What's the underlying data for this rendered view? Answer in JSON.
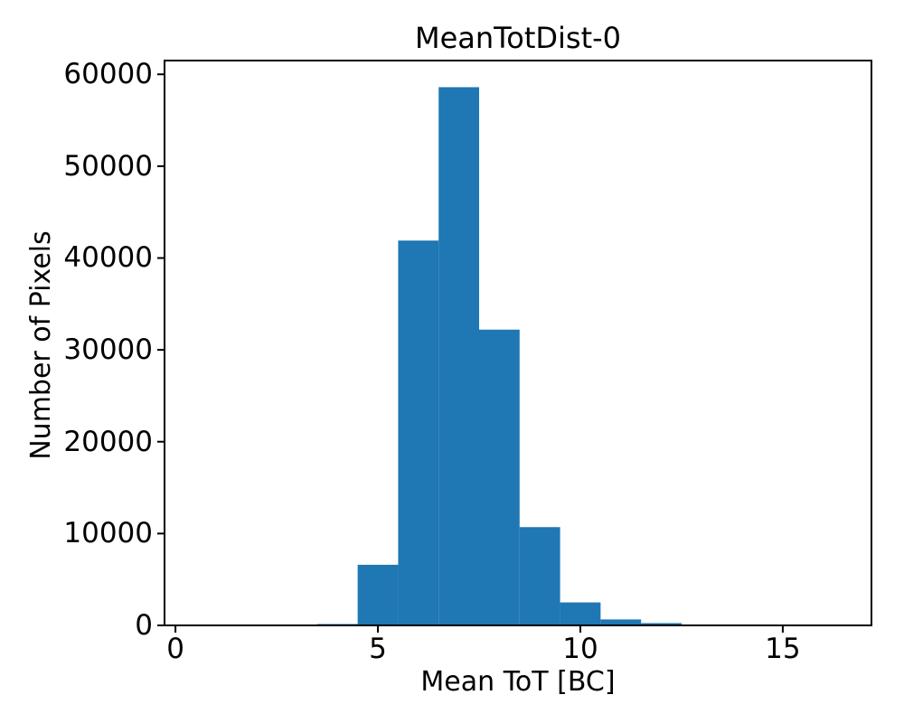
{
  "figure": {
    "background_color": "#ffffff"
  },
  "chart_data": {
    "type": "bar",
    "subtype": "histogram",
    "title": "MeanTotDist-0",
    "xlabel": "Mean ToT [BC]",
    "ylabel": "Number of Pixels",
    "bin_edges": [
      3.5,
      4.5,
      5.5,
      6.5,
      7.5,
      8.5,
      9.5,
      10.5,
      11.5,
      12.5,
      13.5,
      14.5
    ],
    "values": [
      150,
      6600,
      41900,
      58600,
      32200,
      10700,
      2500,
      650,
      250,
      100,
      100
    ],
    "xticks": [
      0,
      5,
      10,
      15
    ],
    "yticks": [
      0,
      10000,
      20000,
      30000,
      40000,
      50000,
      60000
    ],
    "xlim": [
      -0.27,
      17.19
    ],
    "ylim": [
      0,
      61500
    ],
    "bar_color": "#1f77b4",
    "axis_color": "#000000",
    "grid": false,
    "legend": null
  }
}
